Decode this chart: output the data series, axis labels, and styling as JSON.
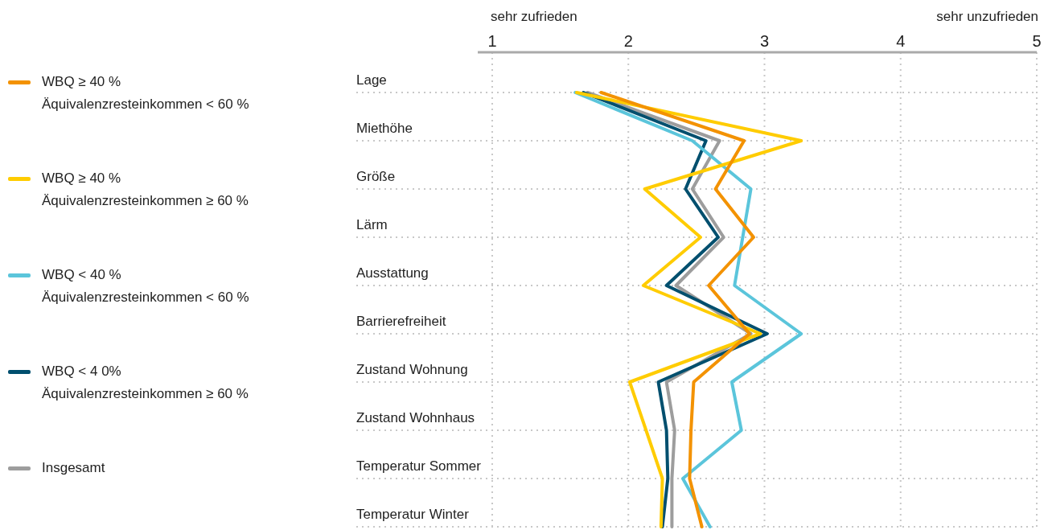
{
  "chart_data": {
    "type": "line",
    "orientation": "horizontal",
    "categories": [
      "Lage",
      "Miethöhe",
      "Größe",
      "Lärm",
      "Ausstattung",
      "Barrierefreiheit",
      "Zustand Wohnung",
      "Zustand Wohnhaus",
      "Temperatur Sommer",
      "Temperatur Winter"
    ],
    "series": [
      {
        "name": "WBQ ≥ 40 %\nÄquivalenzresteinkommen < 60 %",
        "color": "#f39200",
        "values": [
          1.8,
          2.85,
          2.64,
          2.92,
          2.59,
          2.89,
          2.48,
          2.46,
          2.45,
          2.54
        ]
      },
      {
        "name": "WBQ ≥ 40 %\nÄquivalenzresteinkommen ≥ 60 %",
        "color": "#ffcc00",
        "values": [
          1.62,
          3.27,
          2.12,
          2.53,
          2.11,
          2.97,
          2.01,
          2.13,
          2.25,
          2.24
        ]
      },
      {
        "name": "WBQ < 40 %\nÄquivalenzresteinkommen < 60 %",
        "color": "#5bc5db",
        "values": [
          1.61,
          2.47,
          2.9,
          2.84,
          2.78,
          3.27,
          2.76,
          2.83,
          2.4,
          2.6
        ]
      },
      {
        "name": "WBQ < 4 0%\nÄquivalenzresteinkommen ≥ 60 %",
        "color": "#004f6e",
        "values": [
          1.67,
          2.57,
          2.42,
          2.66,
          2.28,
          3.02,
          2.22,
          2.28,
          2.29,
          2.25
        ]
      },
      {
        "name": "Insgesamt",
        "color": "#9d9d9d",
        "values": [
          1.7,
          2.67,
          2.47,
          2.7,
          2.35,
          2.9,
          2.28,
          2.34,
          2.32,
          2.32
        ]
      }
    ],
    "xlim": [
      1,
      5
    ],
    "xticks": [
      1,
      2,
      3,
      4,
      5
    ],
    "grid": true,
    "legend": "left",
    "marker": "none",
    "line_style": "solid",
    "annotations": [
      "sehr zufrieden",
      "sehr unzufrieden"
    ]
  }
}
